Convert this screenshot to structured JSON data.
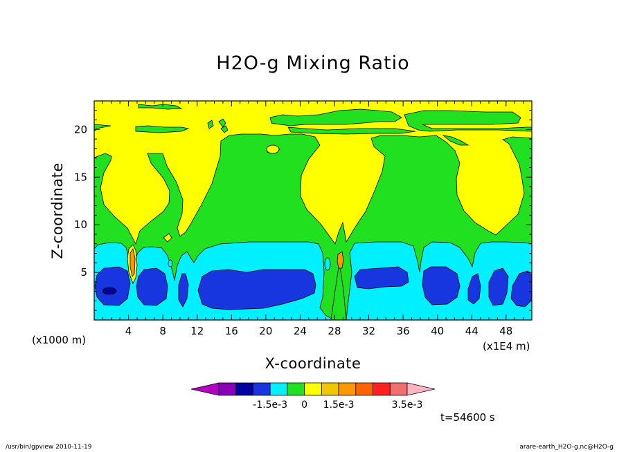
{
  "footer": {
    "left": "/usr/bin/gpview  2010-11-19",
    "right": "arare-earth_H2O-g.nc@H2O-g"
  },
  "chart_data": {
    "type": "heatmap",
    "title": "H2O-g Mixing Ratio",
    "xlabel": "X-coordinate",
    "ylabel": "Z-coordinate",
    "x_unit_label": "(x1000 m)",
    "x_scale_label": "(x1E4 m)",
    "time_label": "t=54600 s",
    "xlim": [
      0,
      51
    ],
    "ylim": [
      0,
      23
    ],
    "xticks": [
      4,
      8,
      12,
      16,
      20,
      24,
      28,
      32,
      36,
      40,
      44,
      48
    ],
    "yticks": [
      5,
      10,
      15,
      20
    ],
    "colorbar": {
      "colors": [
        "#b000c0",
        "#8800b8",
        "#0000a0",
        "#1836e0",
        "#00f0ff",
        "#20e020",
        "#ffff00",
        "#f0c800",
        "#ff9800",
        "#ff6400",
        "#ff2020",
        "#f07070",
        "#ffb4c0"
      ],
      "labels": [
        {
          "text": "-1.5e-3",
          "bin": 3
        },
        {
          "text": "0",
          "bin": 5
        },
        {
          "text": "1.5e-3",
          "bin": 7
        },
        {
          "text": "3.5e-3",
          "bin": 11
        }
      ]
    },
    "regions": [
      {
        "name": "upper-yellow",
        "level": "yellow"
      },
      {
        "name": "green-columns",
        "level": "green"
      },
      {
        "name": "cyan-layer",
        "level": "cyan"
      },
      {
        "name": "blue-cores",
        "level": "blue"
      },
      {
        "name": "orange-cores",
        "level": "orange"
      }
    ]
  }
}
